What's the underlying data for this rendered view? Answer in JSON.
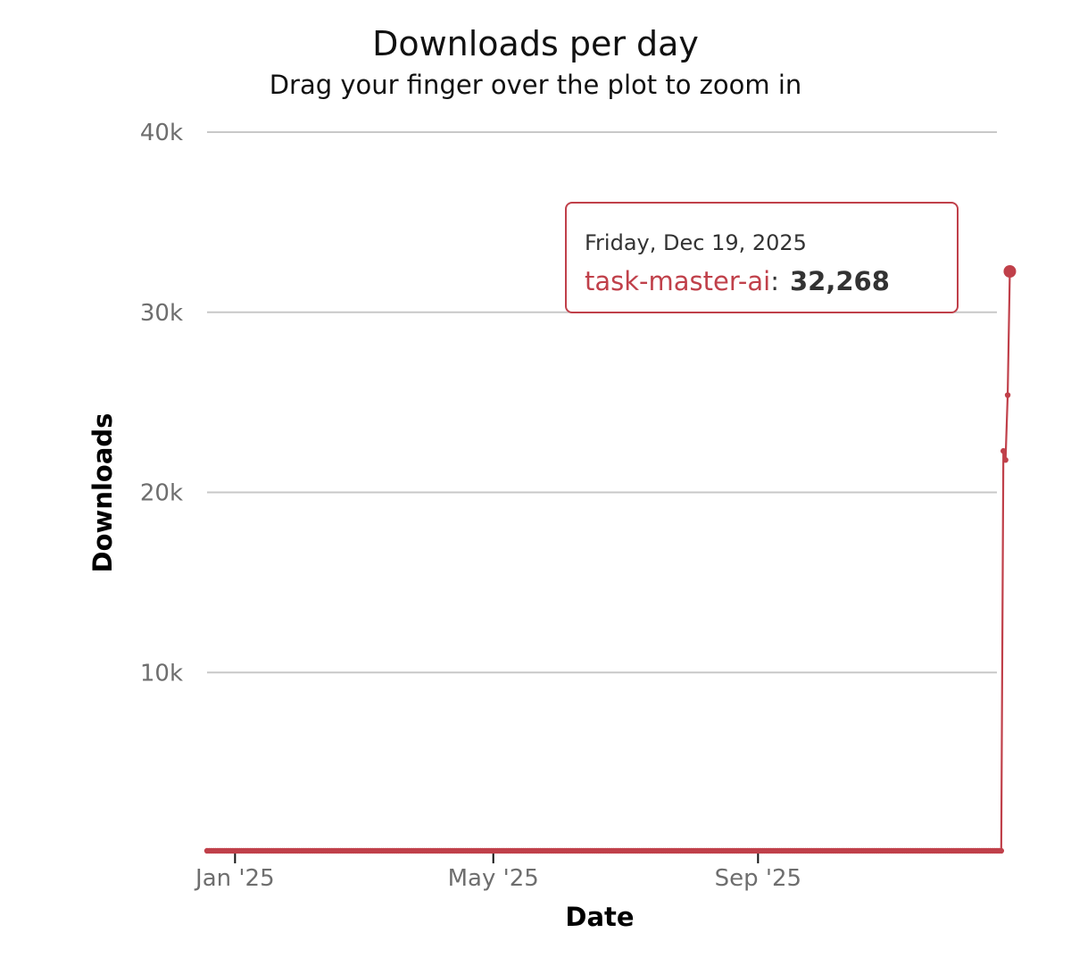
{
  "chart_data": {
    "type": "line",
    "title": "Downloads per day",
    "subtitle": "Drag your finger over the plot to zoom in",
    "xlabel": "Date",
    "ylabel": "Downloads",
    "ylim": [
      0,
      40000
    ],
    "xlim": [
      "2024-12-19",
      "2025-12-21"
    ],
    "y_ticks": [
      {
        "value": 10000,
        "label": "10k"
      },
      {
        "value": 20000,
        "label": "20k"
      },
      {
        "value": 30000,
        "label": "30k"
      },
      {
        "value": 40000,
        "label": "40k"
      }
    ],
    "x_ticks": [
      {
        "date": "2025-01-01",
        "label": "Jan '25"
      },
      {
        "date": "2025-05-01",
        "label": "May '25"
      },
      {
        "date": "2025-09-01",
        "label": "Sep '25"
      }
    ],
    "grid": true,
    "color": "#c0404a",
    "series": [
      {
        "name": "task-master-ai",
        "start": "2024-12-19",
        "values": [
          100,
          100,
          100,
          100,
          100,
          100,
          100,
          100,
          100,
          100,
          100,
          100,
          100,
          100,
          100,
          100,
          100,
          100,
          100,
          100,
          100,
          100,
          100,
          100,
          100,
          100,
          100,
          100,
          100,
          100,
          100,
          100,
          100,
          100,
          100,
          100,
          100,
          100,
          100,
          100,
          100,
          100,
          100,
          100,
          100,
          100,
          100,
          100,
          100,
          100,
          100,
          100,
          100,
          100,
          100,
          100,
          100,
          100,
          100,
          100,
          100,
          100,
          100,
          100,
          100,
          100,
          100,
          100,
          100,
          100,
          100,
          100,
          100,
          100,
          100,
          100,
          100,
          100,
          100,
          100,
          100,
          100,
          100,
          100,
          100,
          100,
          100,
          100,
          100,
          100,
          100,
          100,
          100,
          100,
          100,
          100,
          100,
          100,
          100,
          100,
          100,
          100,
          100,
          100,
          100,
          100,
          100,
          100,
          100,
          100,
          100,
          100,
          100,
          100,
          100,
          100,
          100,
          100,
          100,
          100,
          100,
          100,
          100,
          100,
          100,
          100,
          100,
          100,
          100,
          100,
          100,
          100,
          100,
          100,
          100,
          100,
          100,
          100,
          100,
          100,
          100,
          100,
          100,
          100,
          100,
          100,
          100,
          100,
          100,
          100,
          100,
          100,
          100,
          100,
          100,
          100,
          100,
          100,
          100,
          100,
          100,
          100,
          100,
          100,
          100,
          100,
          100,
          100,
          100,
          100,
          100,
          100,
          100,
          100,
          100,
          100,
          100,
          100,
          100,
          100,
          100,
          100,
          100,
          100,
          100,
          100,
          100,
          100,
          100,
          100,
          100,
          100,
          100,
          100,
          100,
          100,
          100,
          100,
          100,
          100,
          100,
          100,
          100,
          100,
          100,
          100,
          100,
          100,
          100,
          100,
          100,
          100,
          100,
          100,
          100,
          100,
          100,
          100,
          100,
          100,
          100,
          100,
          100,
          100,
          100,
          100,
          100,
          100,
          100,
          100,
          100,
          100,
          100,
          100,
          100,
          100,
          100,
          100,
          100,
          100,
          100,
          100,
          100,
          100,
          100,
          100,
          100,
          100,
          100,
          100,
          100,
          100,
          100,
          100,
          100,
          100,
          100,
          100,
          100,
          100,
          100,
          100,
          100,
          100,
          100,
          100,
          100,
          100,
          100,
          100,
          100,
          100,
          100,
          100,
          100,
          100,
          100,
          100,
          100,
          100,
          100,
          100,
          100,
          100,
          100,
          100,
          100,
          100,
          100,
          100,
          100,
          100,
          100,
          100,
          100,
          100,
          100,
          100,
          100,
          100,
          100,
          100,
          100,
          100,
          100,
          100,
          100,
          100,
          100,
          100,
          100,
          100,
          100,
          100,
          100,
          100,
          100,
          100,
          100,
          100,
          100,
          100,
          100,
          100,
          100,
          100,
          100,
          100,
          100,
          100,
          100,
          100,
          100,
          100,
          100,
          100,
          100,
          100,
          100,
          100,
          100,
          100,
          100,
          100,
          100,
          100,
          100,
          100,
          100,
          100,
          100,
          100,
          100,
          100,
          100,
          100,
          100,
          100,
          100,
          100,
          100,
          100,
          100,
          100,
          100,
          100,
          100,
          100,
          100,
          100,
          22300,
          21800,
          25400,
          32268
        ]
      }
    ],
    "tooltip": {
      "date": "Friday, Dec 19, 2025",
      "series": "task-master-ai",
      "separator": ":",
      "value": "32,268"
    }
  }
}
